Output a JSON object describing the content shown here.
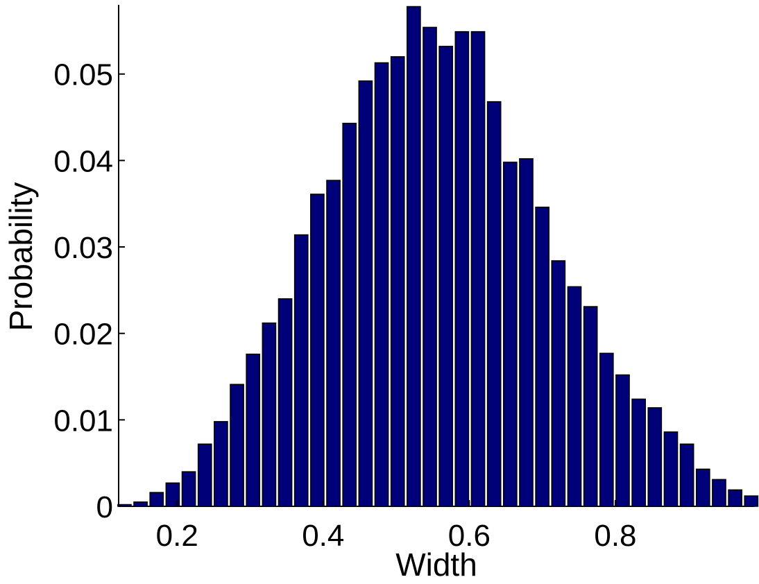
{
  "chart_data": {
    "type": "bar",
    "title": "",
    "xlabel": "Width",
    "ylabel": "Probability",
    "xlim": [
      0.12,
      0.99
    ],
    "ylim": [
      0,
      0.058
    ],
    "x_ticks": [
      0.2,
      0.4,
      0.6,
      0.8
    ],
    "x_tick_labels": [
      "0.2",
      "0.4",
      "0.6",
      "0.8"
    ],
    "y_ticks": [
      0,
      0.01,
      0.02,
      0.03,
      0.04,
      0.05
    ],
    "y_tick_labels": [
      "0",
      "0.01",
      "0.02",
      "0.03",
      "0.04",
      "0.05"
    ],
    "bar_color": "#000078",
    "bar_edge_color": "#000000",
    "grid": false,
    "legend": "none",
    "x": [
      0.128,
      0.15,
      0.172,
      0.194,
      0.216,
      0.238,
      0.26,
      0.282,
      0.304,
      0.326,
      0.348,
      0.37,
      0.392,
      0.414,
      0.436,
      0.458,
      0.48,
      0.502,
      0.524,
      0.546,
      0.568,
      0.59,
      0.612,
      0.634,
      0.656,
      0.678,
      0.7,
      0.722,
      0.744,
      0.766,
      0.788,
      0.81,
      0.832,
      0.854,
      0.876,
      0.898,
      0.92,
      0.942,
      0.964,
      0.986
    ],
    "values": [
      0.0002,
      0.0005,
      0.0016,
      0.0027,
      0.004,
      0.0072,
      0.0098,
      0.0141,
      0.0176,
      0.0212,
      0.024,
      0.0314,
      0.0361,
      0.0377,
      0.0443,
      0.0492,
      0.0513,
      0.052,
      0.0578,
      0.0554,
      0.0532,
      0.0549,
      0.0549,
      0.0468,
      0.0398,
      0.0402,
      0.0346,
      0.0284,
      0.0254,
      0.0231,
      0.0177,
      0.0152,
      0.0124,
      0.0114,
      0.0086,
      0.0072,
      0.0043,
      0.0031,
      0.0019,
      0.0012
    ],
    "bar_width": 0.0182
  }
}
